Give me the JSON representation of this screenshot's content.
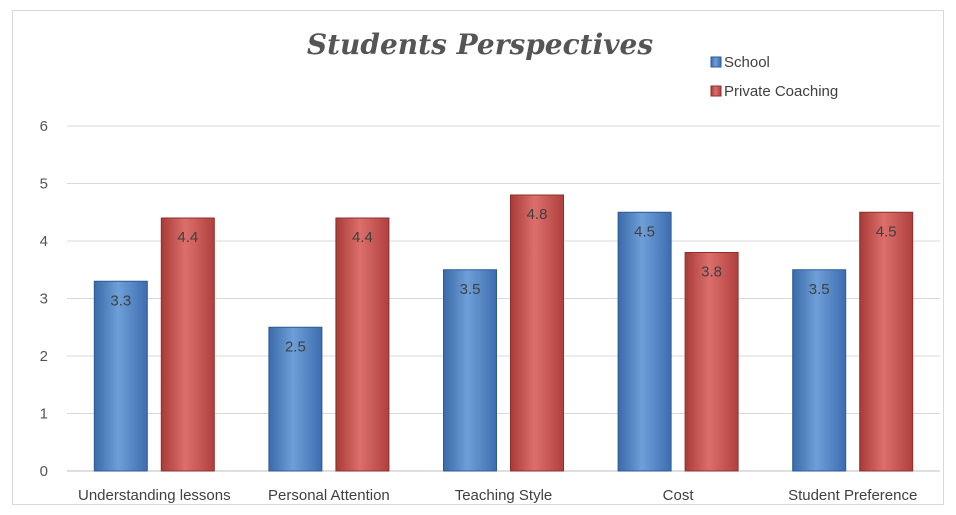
{
  "chart_data": {
    "type": "bar",
    "title": "Students Perspectives",
    "categories": [
      "Understanding lessons",
      "Personal Attention",
      "Teaching Style",
      "Cost",
      "Student Preference"
    ],
    "series": [
      {
        "name": "School",
        "values": [
          3.3,
          2.5,
          3.5,
          4.5,
          3.5
        ],
        "color": "#4f81bd"
      },
      {
        "name": "Private Coaching",
        "values": [
          4.4,
          4.4,
          4.8,
          3.8,
          4.5
        ],
        "color": "#c0504d"
      }
    ],
    "ylim": [
      0,
      6
    ],
    "yticks": [
      0,
      1,
      2,
      3,
      4,
      5,
      6
    ],
    "grid": true,
    "legend_position": "top-right",
    "data_labels": true
  }
}
